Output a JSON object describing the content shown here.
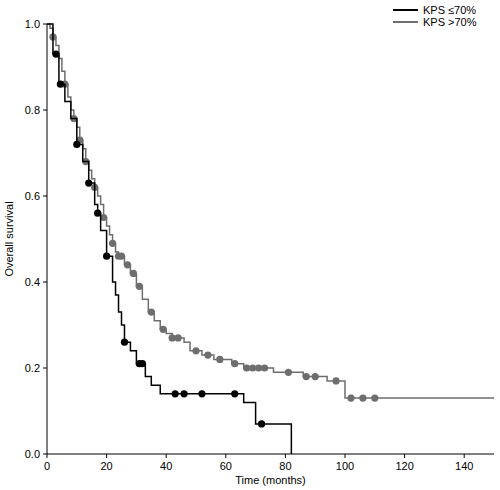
{
  "chart_data": {
    "type": "kaplan-meier",
    "x_label": "Time (months)",
    "y_label": "Overall survival",
    "xlim": [
      0,
      150
    ],
    "ylim": [
      0,
      1
    ],
    "xticks": [
      0,
      20,
      40,
      60,
      80,
      100,
      120,
      140
    ],
    "yticks": [
      {
        "value": 0,
        "label": "0.0"
      },
      0.2,
      0.4,
      0.6,
      0.8,
      {
        "value": 1,
        "label": "1.0"
      }
    ],
    "legend": "top-right",
    "grid": false,
    "series": [
      {
        "name": "KPS ≤70%",
        "color": "#000000",
        "marker": "circle",
        "line_style": "solid",
        "x": [
          0,
          2,
          4,
          6,
          8,
          10,
          12,
          14,
          16,
          17,
          18,
          20,
          22,
          23,
          24,
          25,
          26,
          28,
          30,
          33,
          35,
          38,
          66,
          70,
          82
        ],
        "values": [
          1,
          0.93,
          0.86,
          0.82,
          0.78,
          0.72,
          0.68,
          0.63,
          0.58,
          0.56,
          0.52,
          0.46,
          0.4,
          0.37,
          0.33,
          0.3,
          0.26,
          0.24,
          0.21,
          0.18,
          0.16,
          0.14,
          0.12,
          0.07,
          0
        ],
        "censor_x": [
          3,
          4.5,
          10,
          14,
          17,
          20,
          26,
          31,
          32,
          43,
          46,
          52,
          63,
          72
        ],
        "censor_values": [
          0.93,
          0.86,
          0.72,
          0.63,
          0.56,
          0.46,
          0.26,
          0.21,
          0.21,
          0.14,
          0.14,
          0.14,
          0.14,
          0.07
        ]
      },
      {
        "name": "KPS >70%",
        "color": "#6e6e6e",
        "marker": "circle",
        "line_style": "solid",
        "x": [
          0,
          1,
          2,
          3,
          4,
          5,
          6,
          7,
          8,
          9,
          10,
          11,
          12,
          13,
          14,
          15,
          16,
          17,
          18,
          19,
          20,
          21,
          22,
          23,
          24,
          26,
          28,
          30,
          32,
          34,
          36,
          38,
          40,
          42,
          46,
          48,
          52,
          56,
          62,
          66,
          76,
          86,
          94,
          100,
          150
        ],
        "values": [
          1,
          0.99,
          0.97,
          0.95,
          0.92,
          0.89,
          0.86,
          0.83,
          0.8,
          0.78,
          0.76,
          0.73,
          0.71,
          0.68,
          0.66,
          0.64,
          0.62,
          0.6,
          0.58,
          0.55,
          0.53,
          0.51,
          0.49,
          0.47,
          0.46,
          0.44,
          0.42,
          0.39,
          0.36,
          0.33,
          0.31,
          0.29,
          0.28,
          0.27,
          0.26,
          0.24,
          0.23,
          0.22,
          0.21,
          0.2,
          0.19,
          0.18,
          0.17,
          0.13,
          0.13
        ],
        "censor_x": [
          2,
          6,
          9,
          11,
          13,
          16,
          19,
          22,
          24,
          25,
          27,
          29,
          31,
          35,
          39,
          42,
          44,
          50,
          54,
          58,
          63,
          67,
          69,
          71,
          73,
          81,
          87,
          90,
          97,
          102,
          106,
          110
        ],
        "censor_values": [
          0.97,
          0.86,
          0.78,
          0.73,
          0.68,
          0.62,
          0.55,
          0.49,
          0.46,
          0.46,
          0.44,
          0.42,
          0.39,
          0.33,
          0.29,
          0.27,
          0.27,
          0.24,
          0.23,
          0.22,
          0.21,
          0.2,
          0.2,
          0.2,
          0.2,
          0.19,
          0.18,
          0.18,
          0.17,
          0.13,
          0.13,
          0.13
        ]
      }
    ]
  }
}
